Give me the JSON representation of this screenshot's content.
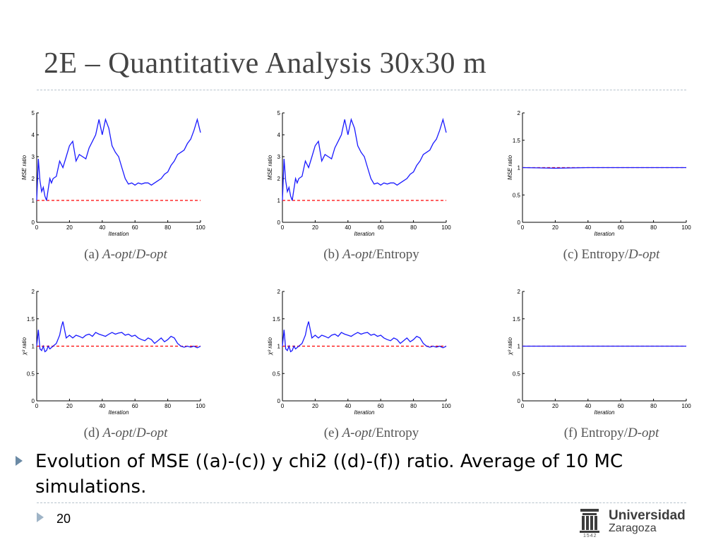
{
  "slide": {
    "title": "2E – Quantitative Analysis 30x30 m",
    "bullet": "Evolution of MSE ((a)-(c)) y chi2 ((d)-(f)) ratio. Average of 10 MC simulations.",
    "page_number": "20",
    "logo_line1": "Universidad",
    "logo_line2": "Zaragoza",
    "logo_year": "1542"
  },
  "colors": {
    "series": "#1a1aff",
    "reference": "#ff0000",
    "axis": "#000000",
    "title": "#444444"
  },
  "chart_data": [
    {
      "id": "a",
      "type": "line",
      "caption_label": "(a)",
      "caption_it1": "A-opt",
      "caption_sep": "/",
      "caption_it2": "D-opt",
      "caption_rest": "",
      "xlabel": "Iteration",
      "ylabel": "MSE ratio",
      "xlim": [
        0,
        100
      ],
      "ylim": [
        0,
        5
      ],
      "xticks": [
        "0",
        "20",
        "40",
        "60",
        "80",
        "100"
      ],
      "yticks": [
        "0",
        "1",
        "2",
        "3",
        "4",
        "5"
      ],
      "reference": 1,
      "x": [
        0,
        1,
        2,
        3,
        4,
        5,
        6,
        7,
        8,
        9,
        10,
        12,
        14,
        16,
        18,
        20,
        22,
        24,
        26,
        28,
        30,
        32,
        34,
        36,
        38,
        40,
        42,
        44,
        46,
        48,
        50,
        52,
        54,
        56,
        58,
        60,
        62,
        64,
        66,
        68,
        70,
        72,
        74,
        76,
        78,
        80,
        82,
        84,
        86,
        88,
        90,
        92,
        94,
        96,
        98,
        100
      ],
      "values": [
        1.0,
        2.9,
        1.9,
        1.4,
        1.6,
        1.2,
        1.0,
        1.5,
        2.0,
        1.8,
        2.0,
        2.1,
        2.8,
        2.5,
        3.0,
        3.5,
        3.7,
        2.8,
        3.1,
        3.0,
        2.9,
        3.4,
        3.7,
        4.0,
        4.7,
        4.0,
        4.7,
        4.3,
        3.5,
        3.2,
        3.0,
        2.5,
        2.0,
        1.75,
        1.8,
        1.7,
        1.8,
        1.75,
        1.8,
        1.8,
        1.7,
        1.8,
        1.9,
        2.0,
        2.2,
        2.3,
        2.6,
        2.8,
        3.1,
        3.2,
        3.3,
        3.6,
        3.8,
        4.2,
        4.7,
        4.1
      ]
    },
    {
      "id": "b",
      "type": "line",
      "caption_label": "(b)",
      "caption_it1": "A-opt",
      "caption_sep": "/",
      "caption_it2": "",
      "caption_rest": "Entropy",
      "xlabel": "Iteration",
      "ylabel": "MSE ratio",
      "xlim": [
        0,
        100
      ],
      "ylim": [
        0,
        5
      ],
      "xticks": [
        "0",
        "20",
        "40",
        "60",
        "80",
        "100"
      ],
      "yticks": [
        "0",
        "1",
        "2",
        "3",
        "4",
        "5"
      ],
      "reference": 1,
      "x": [
        0,
        1,
        2,
        3,
        4,
        5,
        6,
        7,
        8,
        9,
        10,
        12,
        14,
        16,
        18,
        20,
        22,
        24,
        26,
        28,
        30,
        32,
        34,
        36,
        38,
        40,
        42,
        44,
        46,
        48,
        50,
        52,
        54,
        56,
        58,
        60,
        62,
        64,
        66,
        68,
        70,
        72,
        74,
        76,
        78,
        80,
        82,
        84,
        86,
        88,
        90,
        92,
        94,
        96,
        98,
        100
      ],
      "values": [
        1.0,
        2.9,
        1.9,
        1.4,
        1.6,
        1.2,
        1.0,
        1.5,
        2.0,
        1.8,
        2.0,
        2.1,
        2.8,
        2.5,
        3.0,
        3.5,
        3.7,
        2.8,
        3.1,
        3.0,
        2.9,
        3.4,
        3.7,
        4.0,
        4.7,
        4.0,
        4.7,
        4.3,
        3.5,
        3.2,
        3.0,
        2.5,
        2.0,
        1.75,
        1.8,
        1.7,
        1.8,
        1.75,
        1.8,
        1.8,
        1.7,
        1.8,
        1.9,
        2.0,
        2.2,
        2.3,
        2.6,
        2.8,
        3.1,
        3.2,
        3.3,
        3.6,
        3.8,
        4.2,
        4.7,
        4.1
      ]
    },
    {
      "id": "c",
      "type": "line",
      "caption_label": "(c)",
      "caption_it1": "",
      "caption_sep": "/",
      "caption_it2": "D-opt",
      "caption_rest": "Entropy",
      "xlabel": "Iteration",
      "ylabel": "MSE ratio",
      "xlim": [
        0,
        100
      ],
      "ylim": [
        0,
        2
      ],
      "xticks": [
        "0",
        "20",
        "40",
        "60",
        "80",
        "100"
      ],
      "yticks": [
        "0",
        "0.5",
        "1",
        "1.5",
        "2"
      ],
      "reference": 1,
      "x": [
        0,
        20,
        40,
        60,
        80,
        100
      ],
      "values": [
        1.0,
        0.99,
        1.0,
        1.0,
        1.0,
        1.0
      ]
    },
    {
      "id": "d",
      "type": "line",
      "caption_label": "(d)",
      "caption_it1": "A-opt",
      "caption_sep": "/",
      "caption_it2": "D-opt",
      "caption_rest": "",
      "xlabel": "Iteration",
      "ylabel": "χ² ratio",
      "xlim": [
        0,
        100
      ],
      "ylim": [
        0,
        2
      ],
      "xticks": [
        "0",
        "20",
        "40",
        "60",
        "80",
        "100"
      ],
      "yticks": [
        "0",
        "0.5",
        "1",
        "1.5",
        "2"
      ],
      "reference": 1,
      "x": [
        0,
        1,
        2,
        3,
        4,
        5,
        6,
        7,
        8,
        10,
        12,
        14,
        15,
        16,
        18,
        20,
        22,
        24,
        26,
        28,
        30,
        32,
        34,
        36,
        38,
        40,
        42,
        44,
        46,
        48,
        50,
        52,
        54,
        56,
        58,
        60,
        62,
        64,
        66,
        68,
        70,
        72,
        74,
        76,
        78,
        80,
        82,
        84,
        86,
        88,
        90,
        92,
        94,
        96,
        98,
        100
      ],
      "values": [
        1.0,
        1.3,
        0.95,
        0.92,
        1.0,
        0.9,
        0.92,
        1.0,
        0.95,
        1.0,
        1.05,
        1.2,
        1.35,
        1.45,
        1.15,
        1.2,
        1.15,
        1.2,
        1.18,
        1.15,
        1.2,
        1.22,
        1.18,
        1.25,
        1.22,
        1.2,
        1.18,
        1.22,
        1.25,
        1.22,
        1.24,
        1.25,
        1.2,
        1.22,
        1.18,
        1.2,
        1.15,
        1.12,
        1.1,
        1.15,
        1.12,
        1.05,
        1.1,
        1.15,
        1.08,
        1.12,
        1.18,
        1.15,
        1.05,
        1.0,
        0.98,
        1.0,
        0.98,
        1.0,
        0.97,
        1.0
      ]
    },
    {
      "id": "e",
      "type": "line",
      "caption_label": "(e)",
      "caption_it1": "A-opt",
      "caption_sep": "/",
      "caption_it2": "",
      "caption_rest": "Entropy",
      "xlabel": "Iteration",
      "ylabel": "χ² ratio",
      "xlim": [
        0,
        100
      ],
      "ylim": [
        0,
        2
      ],
      "xticks": [
        "0",
        "20",
        "40",
        "60",
        "80",
        "100"
      ],
      "yticks": [
        "0",
        "0.5",
        "1",
        "1.5",
        "2"
      ],
      "reference": 1,
      "x": [
        0,
        1,
        2,
        3,
        4,
        5,
        6,
        7,
        8,
        10,
        12,
        14,
        15,
        16,
        18,
        20,
        22,
        24,
        26,
        28,
        30,
        32,
        34,
        36,
        38,
        40,
        42,
        44,
        46,
        48,
        50,
        52,
        54,
        56,
        58,
        60,
        62,
        64,
        66,
        68,
        70,
        72,
        74,
        76,
        78,
        80,
        82,
        84,
        86,
        88,
        90,
        92,
        94,
        96,
        98,
        100
      ],
      "values": [
        1.0,
        1.3,
        0.95,
        0.92,
        1.0,
        0.9,
        0.92,
        1.0,
        0.95,
        1.0,
        1.05,
        1.2,
        1.35,
        1.45,
        1.15,
        1.2,
        1.15,
        1.2,
        1.18,
        1.15,
        1.2,
        1.22,
        1.18,
        1.25,
        1.22,
        1.2,
        1.18,
        1.22,
        1.25,
        1.22,
        1.24,
        1.25,
        1.2,
        1.22,
        1.18,
        1.2,
        1.15,
        1.12,
        1.1,
        1.15,
        1.12,
        1.05,
        1.1,
        1.15,
        1.08,
        1.12,
        1.18,
        1.15,
        1.05,
        1.0,
        0.98,
        1.0,
        0.98,
        1.0,
        0.97,
        1.0
      ]
    },
    {
      "id": "f",
      "type": "line",
      "caption_label": "(f)",
      "caption_it1": "",
      "caption_sep": "/",
      "caption_it2": "D-opt",
      "caption_rest": "Entropy",
      "xlabel": "Iteration",
      "ylabel": "χ² ratio",
      "xlim": [
        0,
        100
      ],
      "ylim": [
        0,
        2
      ],
      "xticks": [
        "0",
        "20",
        "40",
        "60",
        "80",
        "100"
      ],
      "yticks": [
        "0",
        "0.5",
        "1",
        "1.5",
        "2"
      ],
      "reference": 1,
      "x": [
        0,
        20,
        40,
        60,
        80,
        100
      ],
      "values": [
        1.0,
        1.0,
        1.0,
        1.0,
        1.0,
        1.0
      ]
    }
  ]
}
